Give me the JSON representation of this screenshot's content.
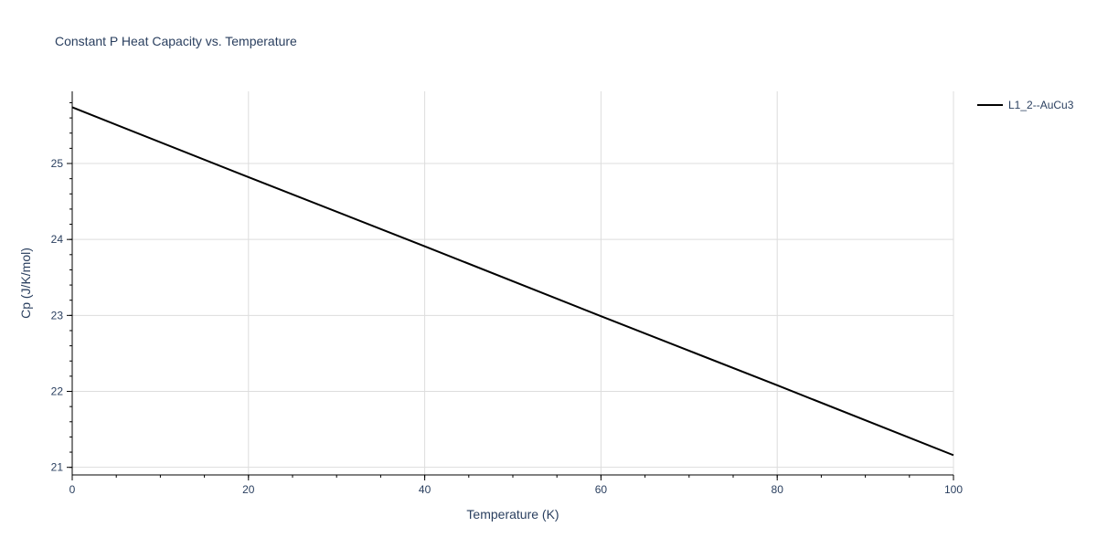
{
  "chart_data": {
    "type": "line",
    "title": "Constant P Heat Capacity vs. Temperature",
    "xlabel": "Temperature (K)",
    "ylabel": "Cp (J/K/mol)",
    "xlim": [
      0,
      100
    ],
    "ylim": [
      20.9,
      25.95
    ],
    "x_ticks": [
      0,
      20,
      40,
      60,
      80,
      100
    ],
    "x_tick_labels": [
      "0",
      "20",
      "40",
      "60",
      "80",
      "100"
    ],
    "x_minor_step": 5,
    "y_ticks": [
      21,
      22,
      23,
      24,
      25
    ],
    "y_tick_labels": [
      "21",
      "22",
      "23",
      "24",
      "25"
    ],
    "y_minor_step": 0.2,
    "grid": true,
    "legend_position": "top-right",
    "series": [
      {
        "name": "L1_2--AuCu3",
        "color": "#000000",
        "x": [
          0,
          20,
          40,
          60,
          80,
          100
        ],
        "y": [
          25.74,
          24.82,
          23.91,
          22.99,
          22.08,
          21.16
        ]
      }
    ]
  }
}
